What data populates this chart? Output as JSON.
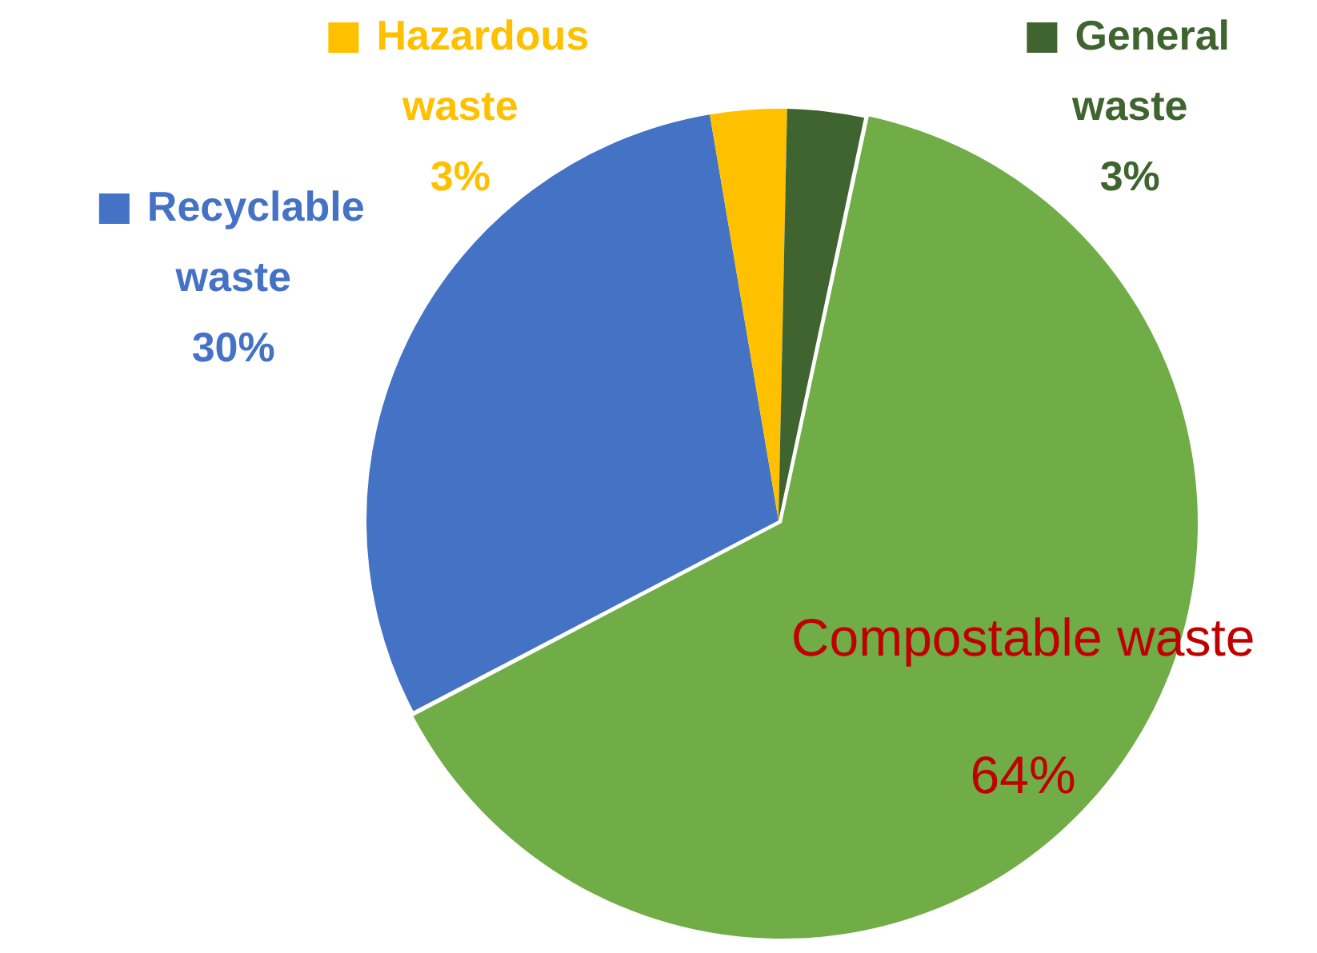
{
  "chart_data": {
    "type": "pie",
    "categories": [
      "Compostable waste",
      "Recyclable waste",
      "Hazardous waste",
      "General waste"
    ],
    "values": [
      64,
      30,
      3,
      3
    ],
    "value_labels": [
      "64%",
      "30%",
      "3%",
      "3%"
    ],
    "colors": [
      "#70ad47",
      "#4472c4",
      "#ffc000",
      "#3f6430"
    ],
    "legend": "left"
  }
}
